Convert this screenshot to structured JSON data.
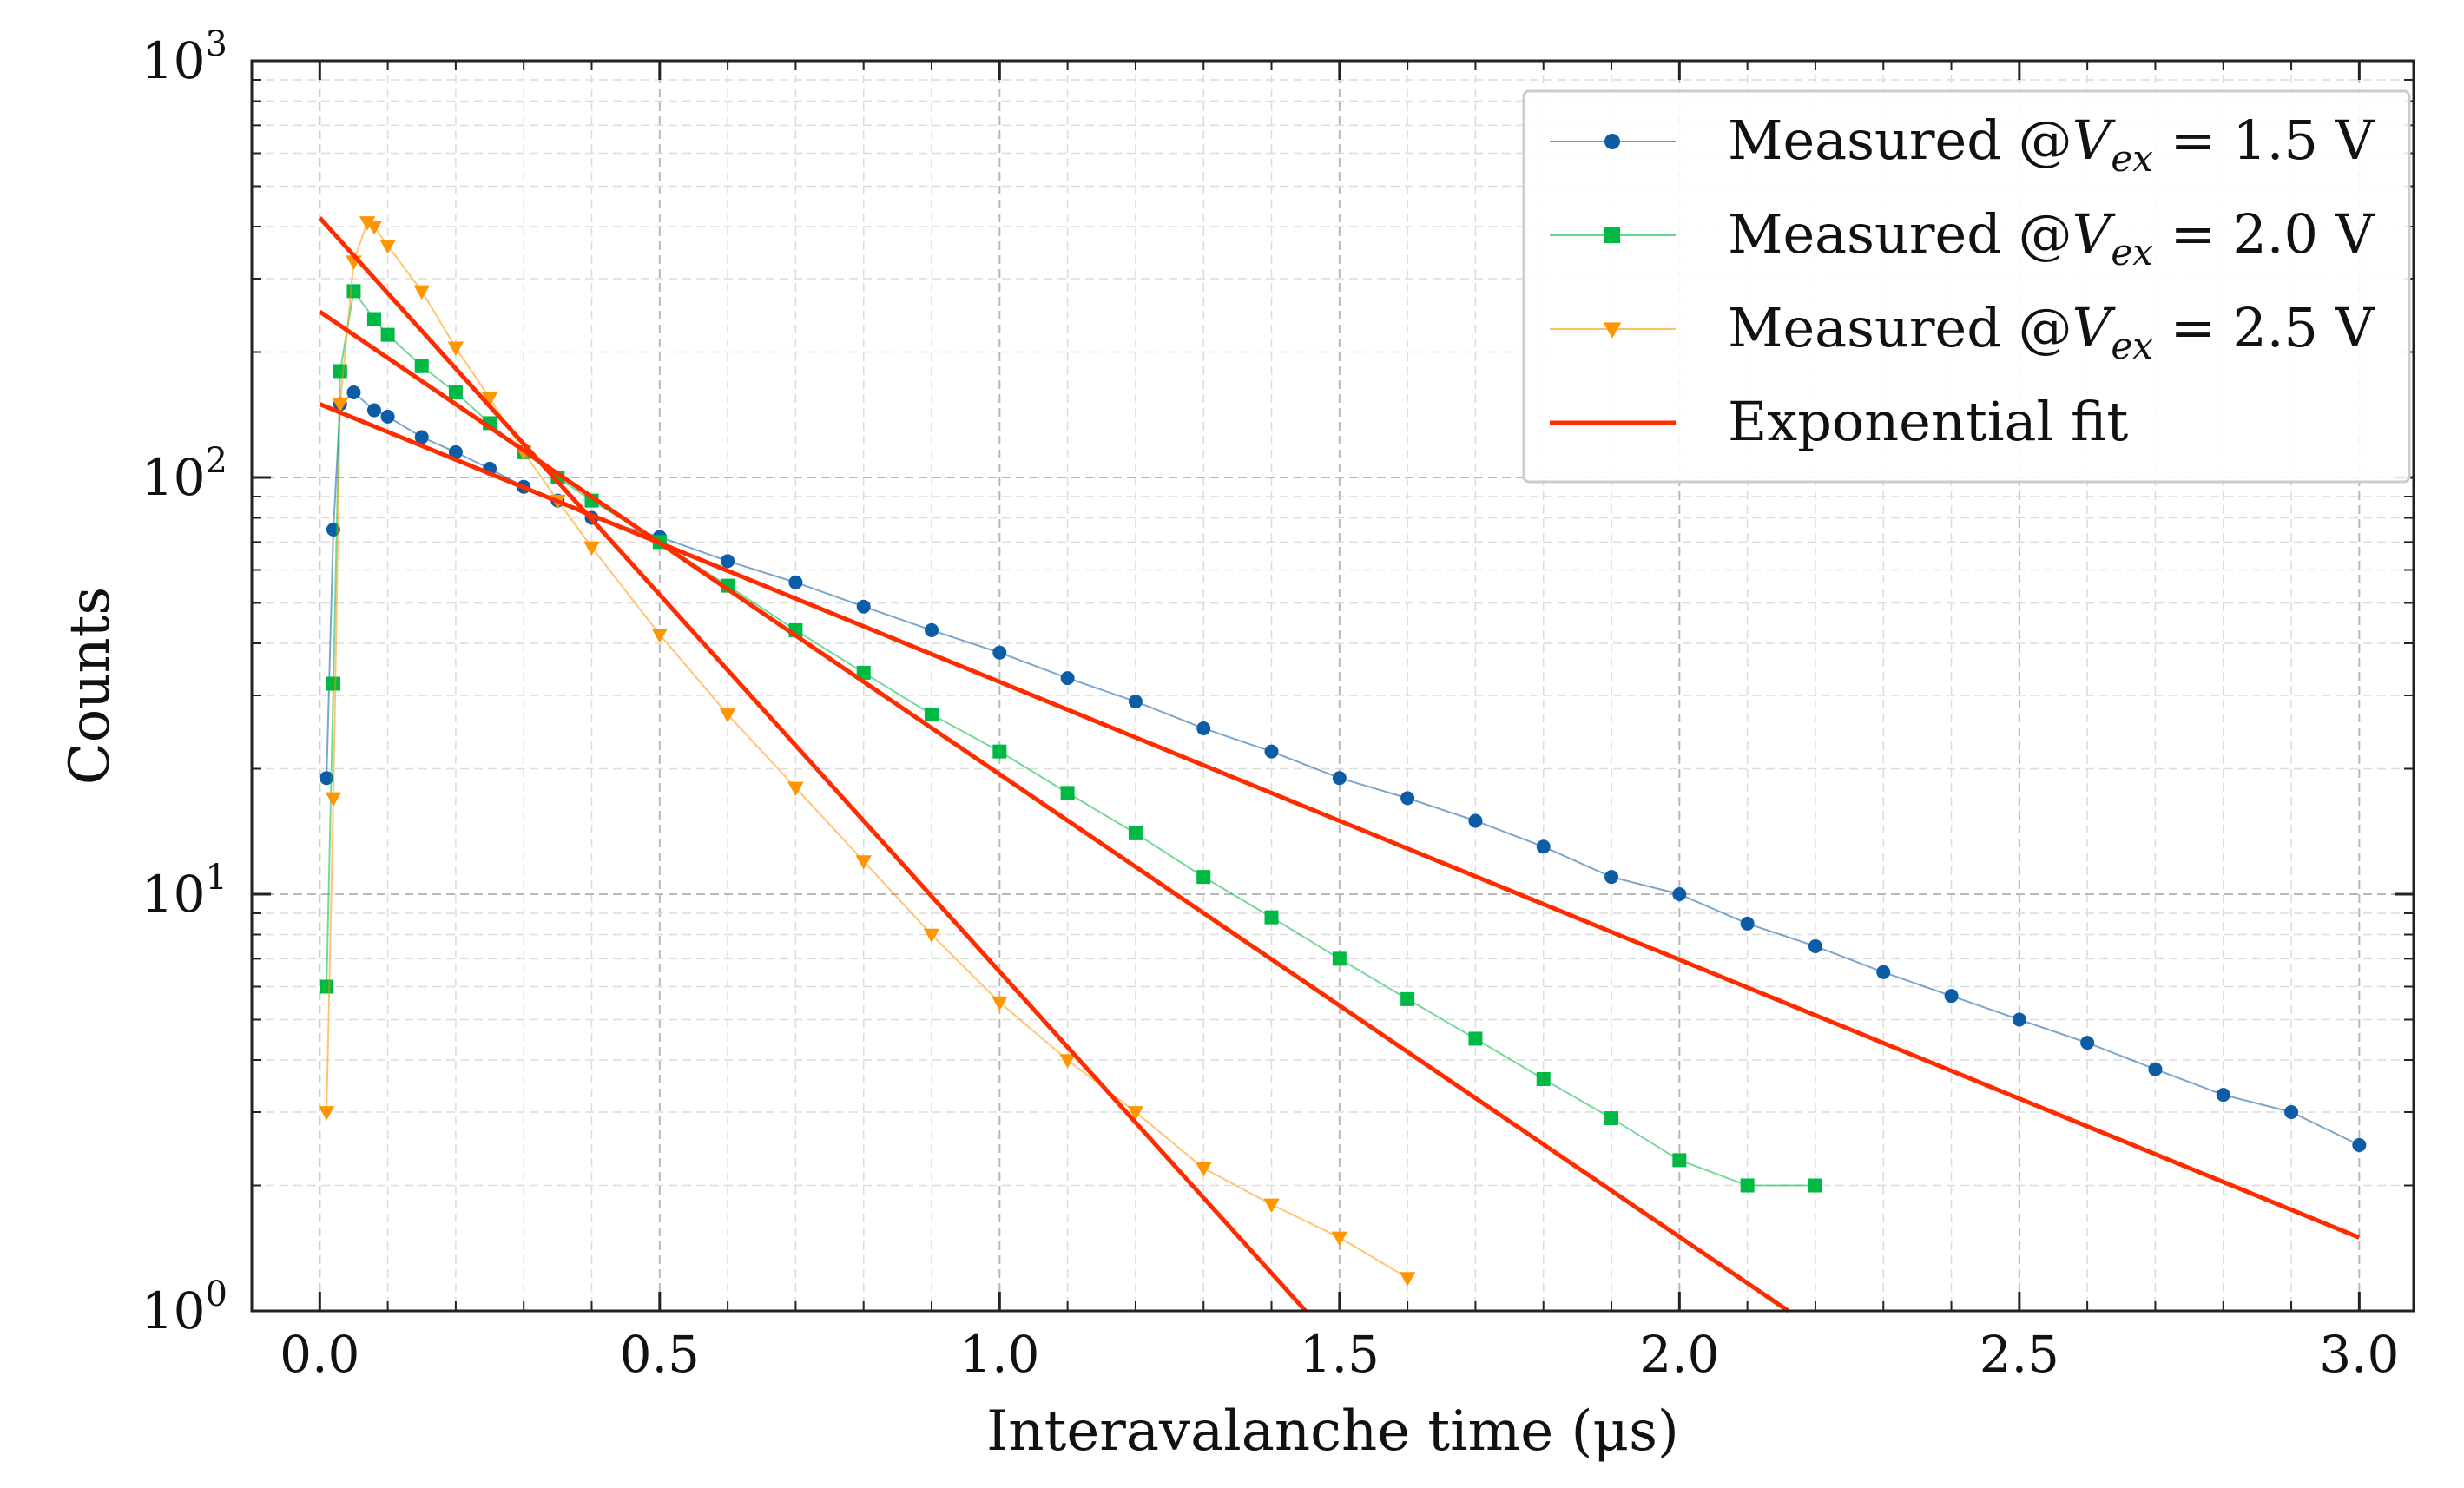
{
  "chart_data": {
    "type": "scatter",
    "title": "",
    "xlabel": "Interavalanche time (μs)",
    "ylabel": "Counts",
    "xlim": [
      -0.1,
      3.08
    ],
    "ylim": [
      1,
      1000
    ],
    "yscale": "log",
    "grid": true,
    "legend_position": "top-right",
    "x_ticks": [
      0.0,
      0.5,
      1.0,
      1.5,
      2.0,
      2.5,
      3.0
    ],
    "x_tick_labels": [
      "0.0",
      "0.5",
      "1.0",
      "1.5",
      "2.0",
      "2.5",
      "3.0"
    ],
    "y_ticks": [
      1,
      10,
      100,
      1000
    ],
    "y_tick_labels": [
      {
        "base": "10",
        "exp": "0"
      },
      {
        "base": "10",
        "exp": "1"
      },
      {
        "base": "10",
        "exp": "2"
      },
      {
        "base": "10",
        "exp": "3"
      }
    ],
    "series": [
      {
        "name": "Measured @V_ex = 1.5 V",
        "legend_prefix": "Measured @",
        "legend_var": "V",
        "legend_sub": "ex",
        "legend_suffix": " = 1.5 V",
        "marker": "circle",
        "color": "#0C5DA5",
        "x": [
          0.01,
          0.02,
          0.03,
          0.05,
          0.08,
          0.1,
          0.15,
          0.2,
          0.25,
          0.3,
          0.35,
          0.4,
          0.5,
          0.6,
          0.7,
          0.8,
          0.9,
          1.0,
          1.1,
          1.2,
          1.3,
          1.4,
          1.5,
          1.6,
          1.7,
          1.8,
          1.9,
          2.0,
          2.1,
          2.2,
          2.3,
          2.4,
          2.5,
          2.6,
          2.7,
          2.8,
          2.9,
          3.0
        ],
        "y": [
          19,
          75,
          150,
          160,
          145,
          140,
          125,
          115,
          105,
          95,
          88,
          80,
          72,
          63,
          56,
          49,
          43,
          38,
          33,
          29,
          25,
          22,
          19,
          17,
          15,
          13,
          11,
          10,
          8.5,
          7.5,
          6.5,
          5.7,
          5.0,
          4.4,
          3.8,
          3.3,
          3.0,
          2.5
        ]
      },
      {
        "name": "Measured @V_ex = 2.0 V",
        "legend_prefix": "Measured @",
        "legend_var": "V",
        "legend_sub": "ex",
        "legend_suffix": " = 2.0 V",
        "marker": "square",
        "color": "#00B945",
        "x": [
          0.01,
          0.02,
          0.03,
          0.05,
          0.08,
          0.1,
          0.15,
          0.2,
          0.25,
          0.3,
          0.35,
          0.4,
          0.5,
          0.6,
          0.7,
          0.8,
          0.9,
          1.0,
          1.1,
          1.2,
          1.3,
          1.4,
          1.5,
          1.6,
          1.7,
          1.8,
          1.9,
          2.0,
          2.1,
          2.2
        ],
        "y": [
          6,
          32,
          180,
          280,
          240,
          220,
          185,
          160,
          135,
          115,
          100,
          88,
          70,
          55,
          43,
          34,
          27,
          22,
          17.5,
          14,
          11,
          8.8,
          7.0,
          5.6,
          4.5,
          3.6,
          2.9,
          2.3,
          2.0,
          2.0
        ]
      },
      {
        "name": "Measured @V_ex = 2.5 V",
        "legend_prefix": "Measured @",
        "legend_var": "V",
        "legend_sub": "ex",
        "legend_suffix": " = 2.5 V",
        "marker": "triangle-down",
        "color": "#FF9500",
        "x": [
          0.01,
          0.02,
          0.03,
          0.05,
          0.07,
          0.08,
          0.1,
          0.15,
          0.2,
          0.25,
          0.3,
          0.35,
          0.4,
          0.5,
          0.6,
          0.7,
          0.8,
          0.9,
          1.0,
          1.1,
          1.2,
          1.3,
          1.4,
          1.5,
          1.6
        ],
        "y": [
          3,
          17,
          150,
          330,
          410,
          400,
          360,
          280,
          205,
          155,
          115,
          88,
          68,
          42,
          27,
          18,
          12,
          8,
          5.5,
          4,
          3,
          2.2,
          1.8,
          1.5,
          1.2
        ]
      }
    ],
    "fits": [
      {
        "name": "Exponential fit",
        "color": "#FF2C00",
        "x": [
          0.0,
          3.0
        ],
        "y": [
          150,
          1.5
        ]
      },
      {
        "name": "Exponential fit",
        "color": "#FF2C00",
        "x": [
          0.0,
          2.16
        ],
        "y": [
          250,
          1.0
        ]
      },
      {
        "name": "Exponential fit",
        "color": "#FF2C00",
        "x": [
          0.0,
          1.45
        ],
        "y": [
          420,
          1.0
        ]
      }
    ],
    "fit_legend_label": "Exponential fit"
  }
}
